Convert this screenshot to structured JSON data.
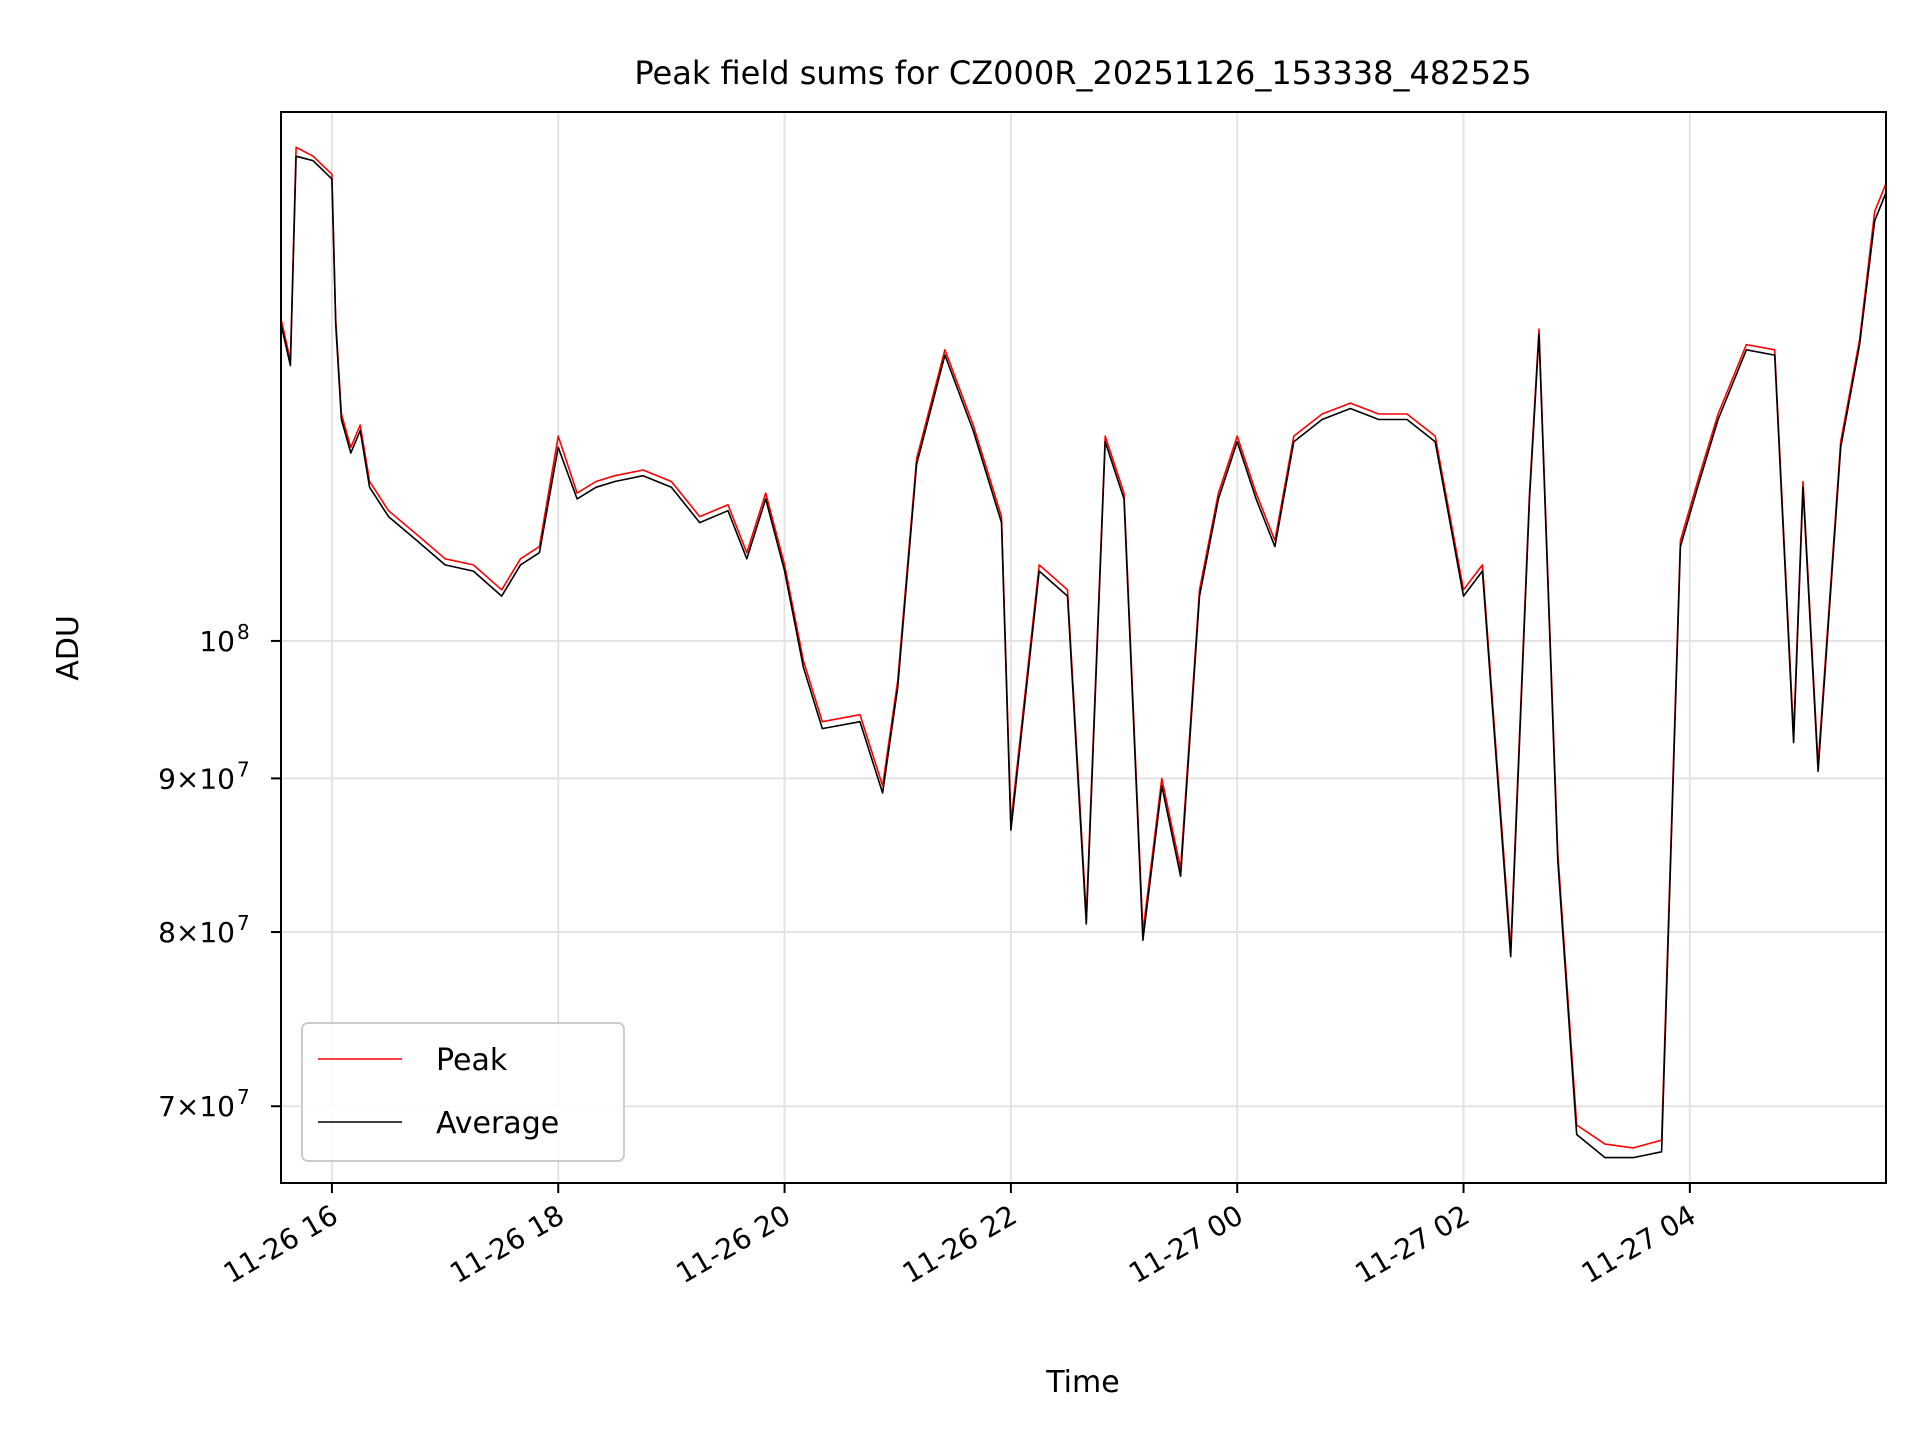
{
  "chart_data": {
    "type": "line",
    "title": "Peak field sums for CZ000R_20251126_153338_482525",
    "xlabel": "Time",
    "ylabel": "ADU",
    "y_scale": "log",
    "grid": true,
    "legend_position": "lower-left",
    "xlim": [
      "2025-11-26 15:33",
      "2025-11-27 05:44"
    ],
    "ylim": [
      66000000,
      150000000
    ],
    "x_ticks": [
      "11-26 16",
      "11-26 18",
      "11-26 20",
      "11-26 22",
      "11-27 00",
      "11-27 02",
      "11-27 04"
    ],
    "y_ticks": [
      {
        "value": 70000000,
        "label": "7×10^7"
      },
      {
        "value": 80000000,
        "label": "8×10^7"
      },
      {
        "value": 90000000,
        "label": "9×10^7"
      },
      {
        "value": 100000000,
        "label": "10^8"
      }
    ],
    "series": [
      {
        "name": "Peak",
        "color": "#ff0000",
        "points": [
          [
            "2025-11-26 15:33",
            128000000
          ],
          [
            "2025-11-26 15:38",
            124000000
          ],
          [
            "2025-11-26 15:41",
            146000000
          ],
          [
            "2025-11-26 15:50",
            145000000
          ],
          [
            "2025-11-26 16:00",
            143000000
          ],
          [
            "2025-11-26 16:02",
            128000000
          ],
          [
            "2025-11-26 16:05",
            119000000
          ],
          [
            "2025-11-26 16:10",
            116000000
          ],
          [
            "2025-11-26 16:15",
            118000000
          ],
          [
            "2025-11-26 16:20",
            113000000
          ],
          [
            "2025-11-26 16:30",
            110500000
          ],
          [
            "2025-11-26 16:45",
            108500000
          ],
          [
            "2025-11-26 17:00",
            106500000
          ],
          [
            "2025-11-26 17:15",
            106000000
          ],
          [
            "2025-11-26 17:30",
            104000000
          ],
          [
            "2025-11-26 17:40",
            106500000
          ],
          [
            "2025-11-26 17:50",
            107500000
          ],
          [
            "2025-11-26 18:00",
            117000000
          ],
          [
            "2025-11-26 18:10",
            112000000
          ],
          [
            "2025-11-26 18:20",
            113000000
          ],
          [
            "2025-11-26 18:30",
            113500000
          ],
          [
            "2025-11-26 18:45",
            114000000
          ],
          [
            "2025-11-26 19:00",
            113000000
          ],
          [
            "2025-11-26 19:15",
            110000000
          ],
          [
            "2025-11-26 19:30",
            111000000
          ],
          [
            "2025-11-26 19:40",
            107000000
          ],
          [
            "2025-11-26 19:50",
            112000000
          ],
          [
            "2025-11-26 20:00",
            106000000
          ],
          [
            "2025-11-26 20:10",
            98500000
          ],
          [
            "2025-11-26 20:20",
            94000000
          ],
          [
            "2025-11-26 20:40",
            94500000
          ],
          [
            "2025-11-26 20:52",
            89500000
          ],
          [
            "2025-11-26 21:00",
            97000000
          ],
          [
            "2025-11-26 21:10",
            115000000
          ],
          [
            "2025-11-26 21:25",
            125000000
          ],
          [
            "2025-11-26 21:40",
            118000000
          ],
          [
            "2025-11-26 21:55",
            110000000
          ],
          [
            "2025-11-26 22:00",
            87000000
          ],
          [
            "2025-11-26 22:15",
            106000000
          ],
          [
            "2025-11-26 22:30",
            104000000
          ],
          [
            "2025-11-26 22:40",
            81000000
          ],
          [
            "2025-11-26 22:50",
            117000000
          ],
          [
            "2025-11-26 23:00",
            112000000
          ],
          [
            "2025-11-26 23:10",
            80000000
          ],
          [
            "2025-11-26 23:20",
            90000000
          ],
          [
            "2025-11-26 23:30",
            84000000
          ],
          [
            "2025-11-26 23:40",
            104000000
          ],
          [
            "2025-11-26 23:50",
            112000000
          ],
          [
            "2025-11-27 00:00",
            117000000
          ],
          [
            "2025-11-27 00:10",
            112000000
          ],
          [
            "2025-11-27 00:20",
            108000000
          ],
          [
            "2025-11-27 00:30",
            117000000
          ],
          [
            "2025-11-27 00:45",
            119000000
          ],
          [
            "2025-11-27 01:00",
            120000000
          ],
          [
            "2025-11-27 01:15",
            119000000
          ],
          [
            "2025-11-27 01:30",
            119000000
          ],
          [
            "2025-11-27 01:45",
            117000000
          ],
          [
            "2025-11-27 02:00",
            104000000
          ],
          [
            "2025-11-27 02:10",
            106000000
          ],
          [
            "2025-11-27 02:25",
            79000000
          ],
          [
            "2025-11-27 02:35",
            112000000
          ],
          [
            "2025-11-27 02:40",
            127000000
          ],
          [
            "2025-11-27 02:50",
            85000000
          ],
          [
            "2025-11-27 03:00",
            69000000
          ],
          [
            "2025-11-27 03:15",
            68000000
          ],
          [
            "2025-11-27 03:30",
            67800000
          ],
          [
            "2025-11-27 03:45",
            68200000
          ],
          [
            "2025-11-27 03:55",
            108000000
          ],
          [
            "2025-11-27 04:05",
            113500000
          ],
          [
            "2025-11-27 04:15",
            119000000
          ],
          [
            "2025-11-27 04:30",
            125500000
          ],
          [
            "2025-11-27 04:45",
            125000000
          ],
          [
            "2025-11-27 04:55",
            93000000
          ],
          [
            "2025-11-27 05:00",
            113000000
          ],
          [
            "2025-11-27 05:08",
            91000000
          ],
          [
            "2025-11-27 05:20",
            116500000
          ],
          [
            "2025-11-27 05:30",
            126000000
          ],
          [
            "2025-11-27 05:38",
            139000000
          ],
          [
            "2025-11-27 05:44",
            142000000
          ]
        ]
      },
      {
        "name": "Average",
        "color": "#000000",
        "points": [
          [
            "2025-11-26 15:33",
            127500000
          ],
          [
            "2025-11-26 15:38",
            123500000
          ],
          [
            "2025-11-26 15:41",
            145000000
          ],
          [
            "2025-11-26 15:50",
            144500000
          ],
          [
            "2025-11-26 16:00",
            142500000
          ],
          [
            "2025-11-26 16:02",
            127500000
          ],
          [
            "2025-11-26 16:05",
            118500000
          ],
          [
            "2025-11-26 16:10",
            115500000
          ],
          [
            "2025-11-26 16:15",
            117500000
          ],
          [
            "2025-11-26 16:20",
            112500000
          ],
          [
            "2025-11-26 16:30",
            110000000
          ],
          [
            "2025-11-26 16:45",
            108000000
          ],
          [
            "2025-11-26 17:00",
            106000000
          ],
          [
            "2025-11-26 17:15",
            105500000
          ],
          [
            "2025-11-26 17:30",
            103500000
          ],
          [
            "2025-11-26 17:40",
            106000000
          ],
          [
            "2025-11-26 17:50",
            107000000
          ],
          [
            "2025-11-26 18:00",
            116000000
          ],
          [
            "2025-11-26 18:10",
            111500000
          ],
          [
            "2025-11-26 18:20",
            112500000
          ],
          [
            "2025-11-26 18:30",
            113000000
          ],
          [
            "2025-11-26 18:45",
            113500000
          ],
          [
            "2025-11-26 19:00",
            112500000
          ],
          [
            "2025-11-26 19:15",
            109500000
          ],
          [
            "2025-11-26 19:30",
            110500000
          ],
          [
            "2025-11-26 19:40",
            106500000
          ],
          [
            "2025-11-26 19:50",
            111500000
          ],
          [
            "2025-11-26 20:00",
            105500000
          ],
          [
            "2025-11-26 20:10",
            98000000
          ],
          [
            "2025-11-26 20:20",
            93500000
          ],
          [
            "2025-11-26 20:40",
            94000000
          ],
          [
            "2025-11-26 20:52",
            89000000
          ],
          [
            "2025-11-26 21:00",
            96500000
          ],
          [
            "2025-11-26 21:10",
            114500000
          ],
          [
            "2025-11-26 21:25",
            124500000
          ],
          [
            "2025-11-26 21:40",
            117500000
          ],
          [
            "2025-11-26 21:55",
            109500000
          ],
          [
            "2025-11-26 22:00",
            86500000
          ],
          [
            "2025-11-26 22:15",
            105500000
          ],
          [
            "2025-11-26 22:30",
            103500000
          ],
          [
            "2025-11-26 22:40",
            80500000
          ],
          [
            "2025-11-26 22:50",
            116500000
          ],
          [
            "2025-11-26 23:00",
            111500000
          ],
          [
            "2025-11-26 23:10",
            79500000
          ],
          [
            "2025-11-26 23:20",
            89500000
          ],
          [
            "2025-11-26 23:30",
            83500000
          ],
          [
            "2025-11-26 23:40",
            103500000
          ],
          [
            "2025-11-26 23:50",
            111500000
          ],
          [
            "2025-11-27 00:00",
            116500000
          ],
          [
            "2025-11-27 00:10",
            111500000
          ],
          [
            "2025-11-27 00:20",
            107500000
          ],
          [
            "2025-11-27 00:30",
            116500000
          ],
          [
            "2025-11-27 00:45",
            118500000
          ],
          [
            "2025-11-27 01:00",
            119500000
          ],
          [
            "2025-11-27 01:15",
            118500000
          ],
          [
            "2025-11-27 01:30",
            118500000
          ],
          [
            "2025-11-27 01:45",
            116500000
          ],
          [
            "2025-11-27 02:00",
            103500000
          ],
          [
            "2025-11-27 02:10",
            105500000
          ],
          [
            "2025-11-27 02:25",
            78500000
          ],
          [
            "2025-11-27 02:35",
            111500000
          ],
          [
            "2025-11-27 02:40",
            126500000
          ],
          [
            "2025-11-27 02:50",
            84500000
          ],
          [
            "2025-11-27 03:00",
            68500000
          ],
          [
            "2025-11-27 03:15",
            67300000
          ],
          [
            "2025-11-27 03:30",
            67300000
          ],
          [
            "2025-11-27 03:45",
            67600000
          ],
          [
            "2025-11-27 03:55",
            107500000
          ],
          [
            "2025-11-27 04:05",
            113000000
          ],
          [
            "2025-11-27 04:15",
            118500000
          ],
          [
            "2025-11-27 04:30",
            125000000
          ],
          [
            "2025-11-27 04:45",
            124500000
          ],
          [
            "2025-11-27 04:55",
            92500000
          ],
          [
            "2025-11-27 05:00",
            112500000
          ],
          [
            "2025-11-27 05:08",
            90500000
          ],
          [
            "2025-11-27 05:20",
            116000000
          ],
          [
            "2025-11-27 05:30",
            125500000
          ],
          [
            "2025-11-27 05:38",
            138000000
          ],
          [
            "2025-11-27 05:44",
            141000000
          ]
        ]
      }
    ]
  }
}
